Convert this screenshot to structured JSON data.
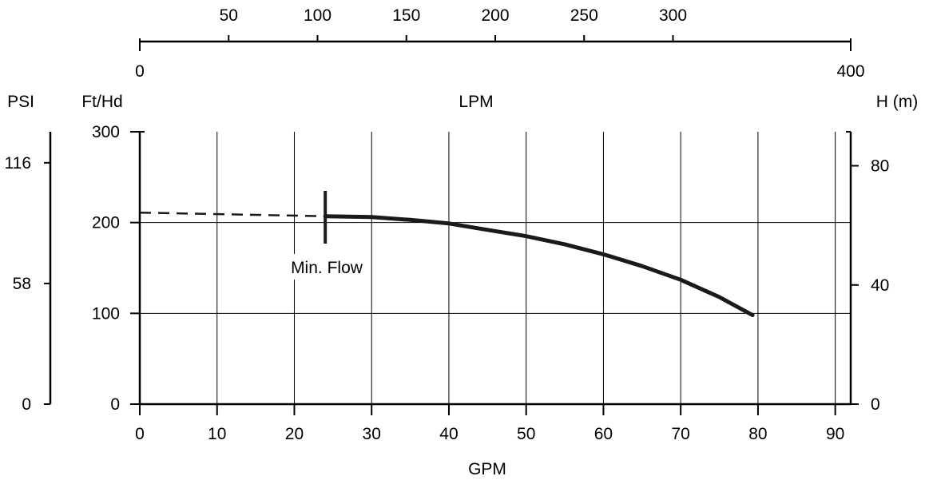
{
  "chart_data": {
    "type": "line",
    "title": "",
    "grid": true,
    "x_axis": {
      "label": "GPM",
      "range": [
        0,
        92
      ],
      "ticks": [
        0,
        10,
        20,
        30,
        40,
        50,
        60,
        70,
        80,
        90
      ]
    },
    "y_axis": {
      "label": "Ft/Hd",
      "range": [
        0,
        300
      ],
      "ticks": [
        0,
        100,
        200,
        300
      ]
    },
    "top_axis": {
      "label": "LPM",
      "range": [
        0,
        400
      ],
      "ticks": [
        0,
        50,
        100,
        150,
        200,
        250,
        300,
        400
      ]
    },
    "psi_axis": {
      "label": "PSI",
      "ticks": [
        0,
        58,
        116
      ]
    },
    "right_axis": {
      "label": "H (m)",
      "ticks": [
        0,
        40,
        80
      ]
    },
    "series": [
      {
        "name": "",
        "style": "solid",
        "x": [
          24,
          30,
          35,
          40,
          45,
          50,
          55,
          60,
          65,
          70,
          75,
          79.3
        ],
        "y": [
          207,
          206,
          203,
          199,
          192,
          185,
          176,
          165,
          152,
          137,
          118,
          98
        ]
      },
      {
        "name": "",
        "style": "dashed",
        "x": [
          0,
          24
        ],
        "y": [
          211,
          207
        ]
      }
    ],
    "annotations": [
      {
        "text": "Min. Flow",
        "x": 24
      }
    ]
  }
}
